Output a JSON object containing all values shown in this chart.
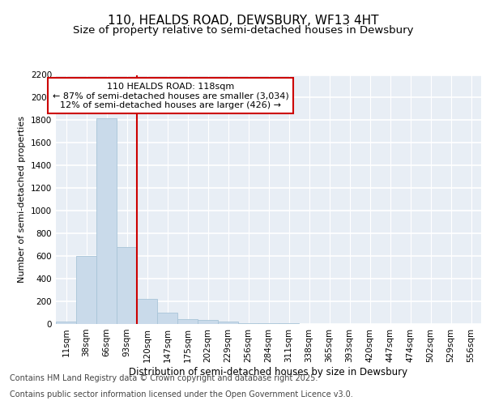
{
  "title": "110, HEALDS ROAD, DEWSBURY, WF13 4HT",
  "subtitle": "Size of property relative to semi-detached houses in Dewsbury",
  "xlabel": "Distribution of semi-detached houses by size in Dewsbury",
  "ylabel": "Number of semi-detached properties",
  "categories": [
    "11sqm",
    "38sqm",
    "66sqm",
    "93sqm",
    "120sqm",
    "147sqm",
    "175sqm",
    "202sqm",
    "229sqm",
    "256sqm",
    "284sqm",
    "311sqm",
    "338sqm",
    "365sqm",
    "393sqm",
    "420sqm",
    "447sqm",
    "474sqm",
    "502sqm",
    "529sqm",
    "556sqm"
  ],
  "values": [
    20,
    600,
    1820,
    680,
    220,
    100,
    45,
    35,
    20,
    10,
    10,
    10,
    0,
    0,
    0,
    0,
    0,
    0,
    0,
    0,
    0
  ],
  "bar_color": "#c9daea",
  "bar_edge_color": "#a8c4d8",
  "property_line_index": 4,
  "property_label": "110 HEALDS ROAD: 118sqm",
  "annotation_line1": "← 87% of semi-detached houses are smaller (3,034)",
  "annotation_line2": "12% of semi-detached houses are larger (426) →",
  "annotation_box_color": "#cc0000",
  "red_line_color": "#cc0000",
  "ylim": [
    0,
    2200
  ],
  "yticks": [
    0,
    200,
    400,
    600,
    800,
    1000,
    1200,
    1400,
    1600,
    1800,
    2000,
    2200
  ],
  "background_color": "#e8eef5",
  "grid_color": "#ffffff",
  "footer_line1": "Contains HM Land Registry data © Crown copyright and database right 2025.",
  "footer_line2": "Contains public sector information licensed under the Open Government Licence v3.0.",
  "title_fontsize": 11,
  "subtitle_fontsize": 9.5,
  "axis_label_fontsize": 8.5,
  "tick_fontsize": 7.5,
  "ylabel_fontsize": 8,
  "footer_fontsize": 7
}
